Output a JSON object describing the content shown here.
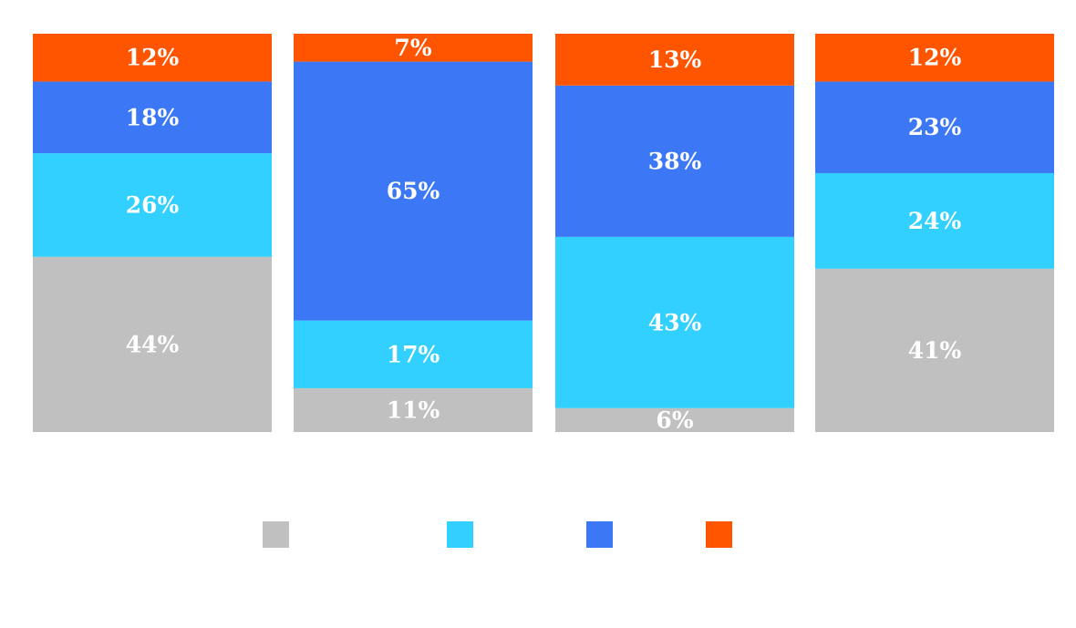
{
  "chart_data": {
    "type": "bar",
    "stacked": true,
    "normalized": true,
    "unit": "%",
    "categories": [
      "",
      "",
      "",
      ""
    ],
    "series": [
      {
        "color": "#c0c0c0",
        "values": [
          44,
          11,
          6,
          41
        ]
      },
      {
        "color": "#31d0ff",
        "values": [
          26,
          17,
          43,
          24
        ]
      },
      {
        "color": "#3c78f6",
        "values": [
          18,
          65,
          38,
          23
        ]
      },
      {
        "color": "#ff5500",
        "values": [
          12,
          7,
          13,
          12
        ]
      }
    ],
    "ylim": [
      0,
      100
    ],
    "grid": false,
    "legend_position": "bottom",
    "colors": {
      "background": "#ffffff",
      "segment_label": "#ffffff"
    }
  }
}
